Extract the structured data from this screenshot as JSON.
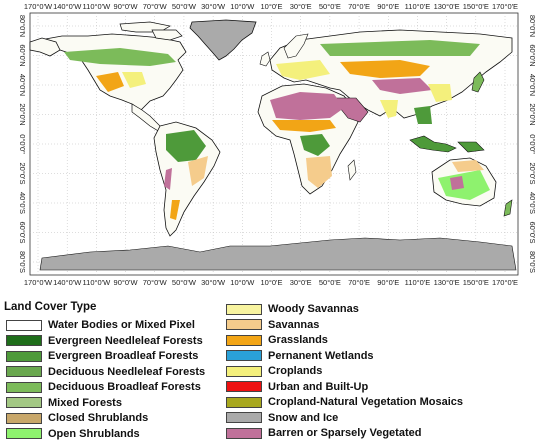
{
  "map": {
    "top_lon_labels": [
      "170°0'W",
      "140°0'W",
      "110°0'W",
      "90°0'W",
      "70°0'W",
      "50°0'W",
      "30°0'W",
      "10°0'W",
      "10°0'E",
      "30°0'E",
      "50°0'E",
      "70°0'E",
      "90°0'E",
      "110°0'E",
      "130°0'E",
      "150°0'E",
      "170°0'E"
    ],
    "bottom_lon_labels": [
      "170°0'W",
      "140°0'W",
      "110°0'W",
      "90°0'W",
      "70°0'W",
      "50°0'W",
      "30°0'W",
      "10°0'W",
      "10°0'E",
      "30°0'E",
      "50°0'E",
      "70°0'E",
      "90°0'E",
      "110°0'E",
      "130°0'E",
      "150°0'E",
      "170°0'E"
    ],
    "left_lat_labels": [
      "80°0'N",
      "60°0'N",
      "40°0'N",
      "20°0'N",
      "0°0'0\"",
      "20°0'S",
      "40°0'S",
      "60°0'S",
      "80°0'S"
    ],
    "right_lat_labels": [
      "80°0'N",
      "60°0'N",
      "40°0'N",
      "20°0'N",
      "0°0'0\"",
      "20°0'S",
      "40°0'S",
      "60°0'S",
      "80°0'S"
    ]
  },
  "legend": {
    "title": "Land Cover Type",
    "left_items": [
      {
        "label": "Water Bodies or Mixed Pixel",
        "color": "#ffffff"
      },
      {
        "label": "Evergreen Needleleaf Forests",
        "color": "#1f6e1a"
      },
      {
        "label": "Evergreen Broadleaf Forests",
        "color": "#4e9a3a"
      },
      {
        "label": "Deciduous Needleleaf Forests",
        "color": "#6aa84f"
      },
      {
        "label": "Deciduous Broadleaf Forests",
        "color": "#7cbb5a"
      },
      {
        "label": "Mixed Forests",
        "color": "#a3c884"
      },
      {
        "label": "Closed Shrublands",
        "color": "#c8a76a"
      },
      {
        "label": "Open Shrublands",
        "color": "#8ef26e"
      }
    ],
    "right_items": [
      {
        "label": "Woody Savannas",
        "color": "#f8f4a0"
      },
      {
        "label": "Savannas",
        "color": "#f5cc8c"
      },
      {
        "label": "Grasslands",
        "color": "#f2a516"
      },
      {
        "label": "Pernanent Wetlands",
        "color": "#2aa1d8"
      },
      {
        "label": "Croplands",
        "color": "#f4f07c"
      },
      {
        "label": "Urban and Built-Up",
        "color": "#ee1111"
      },
      {
        "label": "Cropland-Natural Vegetation Mosaics",
        "color": "#a8a81e"
      },
      {
        "label": "Snow and Ice",
        "color": "#aaaaaa"
      },
      {
        "label": "Barren or Sparsely Vegetated",
        "color": "#c0719a"
      }
    ]
  }
}
